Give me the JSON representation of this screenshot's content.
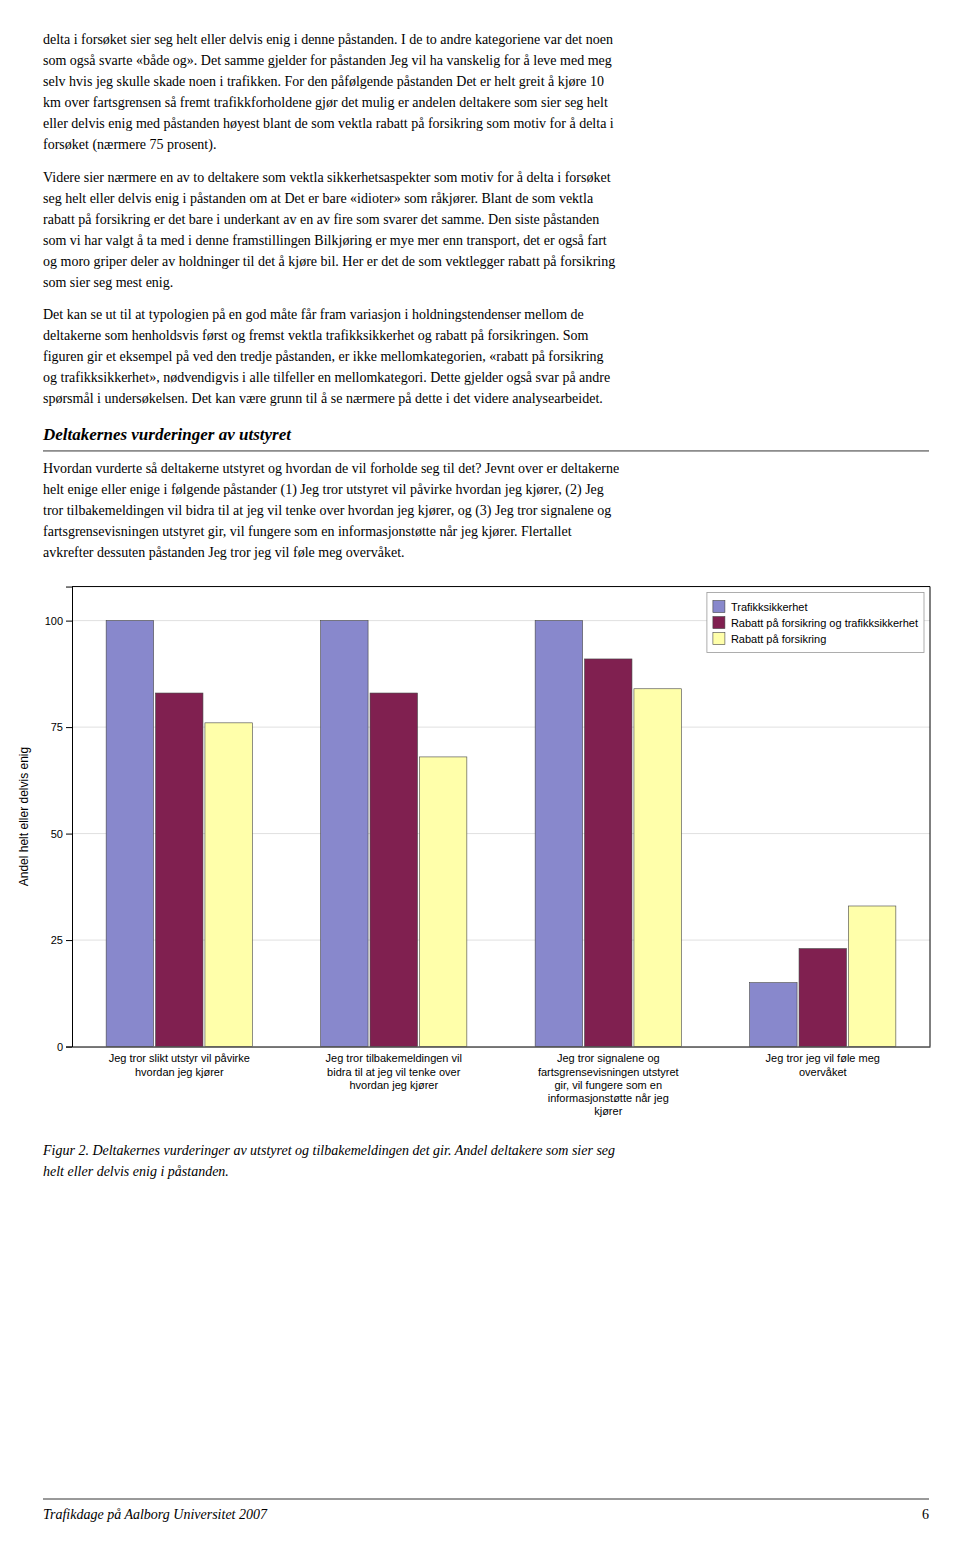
{
  "top_paragraphs": [
    [
      "delta i forsøket sier seg helt eller delvis enig i denne påstanden. I de to andre kategoriene var det noen",
      "som også svarte «både og». Det samme gjelder for påstanden Jeg vil ha vanskelig for å leve med meg",
      "selv hvis jeg skulle skade noen i trafikken. For den påfølgende påstanden Det er helt greit å kjøre 10",
      "km over fartsgrensen så fremt trafikkforholdene gjør det mulig er andelen deltakere som sier seg helt",
      "eller delvis enig med påstanden høyest blant de som vektla rabatt på forsikring som motiv for å delta i",
      "forsøket (nærmere 75 prosent)."
    ],
    [
      "Videre sier nærmere en av to deltakere som vektla sikkerhetsaspekter som motiv for å delta i forsøket",
      "seg helt eller delvis enig i påstanden om at Det er bare «idioter» som råkjører. Blant de som vektla",
      "rabatt på forsikring er det bare i underkant av en av fire som svarer det samme. Den siste påstanden",
      "som vi har valgt å ta med i denne framstillingen Bilkjøring er mye mer enn transport, det er også fart",
      "og moro griper deler av holdninger til det å kjøre bil. Her er det de som vektlegger rabatt på forsikring",
      "som sier seg mest enig."
    ],
    [
      "Det kan se ut til at typologien på en god måte får fram variasjon i holdningstendenser mellom de",
      "deltakerne som henholdsvis først og fremst vektla trafikksikkerhet og rabatt på forsikringen. Som",
      "figuren gir et eksempel på ved den tredje påstanden, er ikke mellomkategorien, «rabatt på forsikring",
      "og trafikksikkerhet», nødvendigvis i alle tilfeller en mellomkategori. Dette gjelder også svar på andre",
      "spørsmål i undersøkelsen. Det kan være grunn til å se nærmere på dette i det videre analysearbeidet."
    ]
  ],
  "heading": "Deltakernes vurderinger av utstyret",
  "intro_lines": [
    "Hvordan vurderte så deltakerne utstyret og hvordan de vil forholde seg til det? Jevnt over er deltakerne",
    "helt enige eller enige i følgende påstander (1) Jeg tror utstyret vil påvirke hvordan jeg kjører, (2) Jeg",
    "tror tilbakemeldingen vil bidra til at jeg vil tenke over hvordan jeg kjører, og (3) Jeg tror signalene og",
    "fartsgrensevisningen utstyret gir, vil fungere som en informasjonstøtte når jeg kjører. Flertallet",
    "avkrefter dessuten påstanden Jeg tror jeg vil føle meg overvåket."
  ],
  "chart_data": {
    "type": "bar",
    "categories": [
      "Jeg tror slikt utstyr vil påvirke\nhvordan jeg kjører",
      "Jeg tror tilbakemeldingen vil\nbidra til at jeg vil tenke over\nhvordan jeg kjører",
      "Jeg tror signalene og\nfartsgrensevisningen utstyret\ngir, vil fungere som en\ninformasjonstøtte når jeg\nkjører",
      "Jeg tror jeg vil føle meg\novervåket"
    ],
    "series": [
      {
        "name": "Trafikksikkerhet",
        "color": "#8888CC",
        "values": [
          100,
          100,
          100,
          15
        ]
      },
      {
        "name": "Rabatt på forsikring og trafikksikkerhet",
        "color": "#802050",
        "values": [
          83,
          83,
          91,
          23
        ]
      },
      {
        "name": "Rabatt på forsikring",
        "color": "#FFFFAA",
        "values": [
          76,
          68,
          84,
          33
        ]
      }
    ],
    "ylabel": "Andel helt eller delvis enig",
    "ylim": [
      0,
      108
    ],
    "yticks": [
      0,
      25,
      50,
      75,
      100
    ],
    "grid": true,
    "legend": "upper right"
  },
  "caption_lines": [
    "Figur 2. Deltakernes vurderinger av utstyret og tilbakemeldingen det gir. Andel deltakere som sier seg",
    "helt eller delvis enig i påstanden."
  ],
  "footer_left": "Trafikdage på Aalborg Universitet 2007",
  "footer_right": "6"
}
